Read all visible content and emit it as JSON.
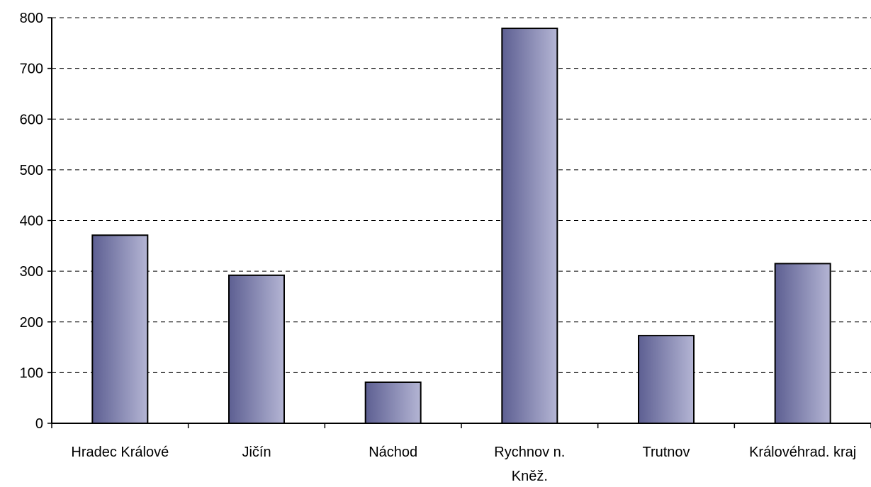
{
  "chart_data": {
    "type": "bar",
    "categories": [
      [
        "Hradec Králové"
      ],
      [
        "Jičín"
      ],
      [
        "Náchod"
      ],
      [
        "Rychnov n.",
        "Kněž."
      ],
      [
        "Trutnov"
      ],
      [
        "Královéhrad. kraj"
      ]
    ],
    "values": [
      371,
      292,
      81,
      779,
      173,
      315
    ],
    "ylim": [
      0,
      800
    ],
    "yticks": [
      "0",
      "100",
      "200",
      "300",
      "400",
      "500",
      "600",
      "700",
      "800"
    ],
    "grid": true,
    "grid_style": "dashed",
    "legend": "none",
    "bar_gradient": [
      "#5d5f92",
      "#b4b5d4"
    ],
    "bar_border": "#000000"
  }
}
